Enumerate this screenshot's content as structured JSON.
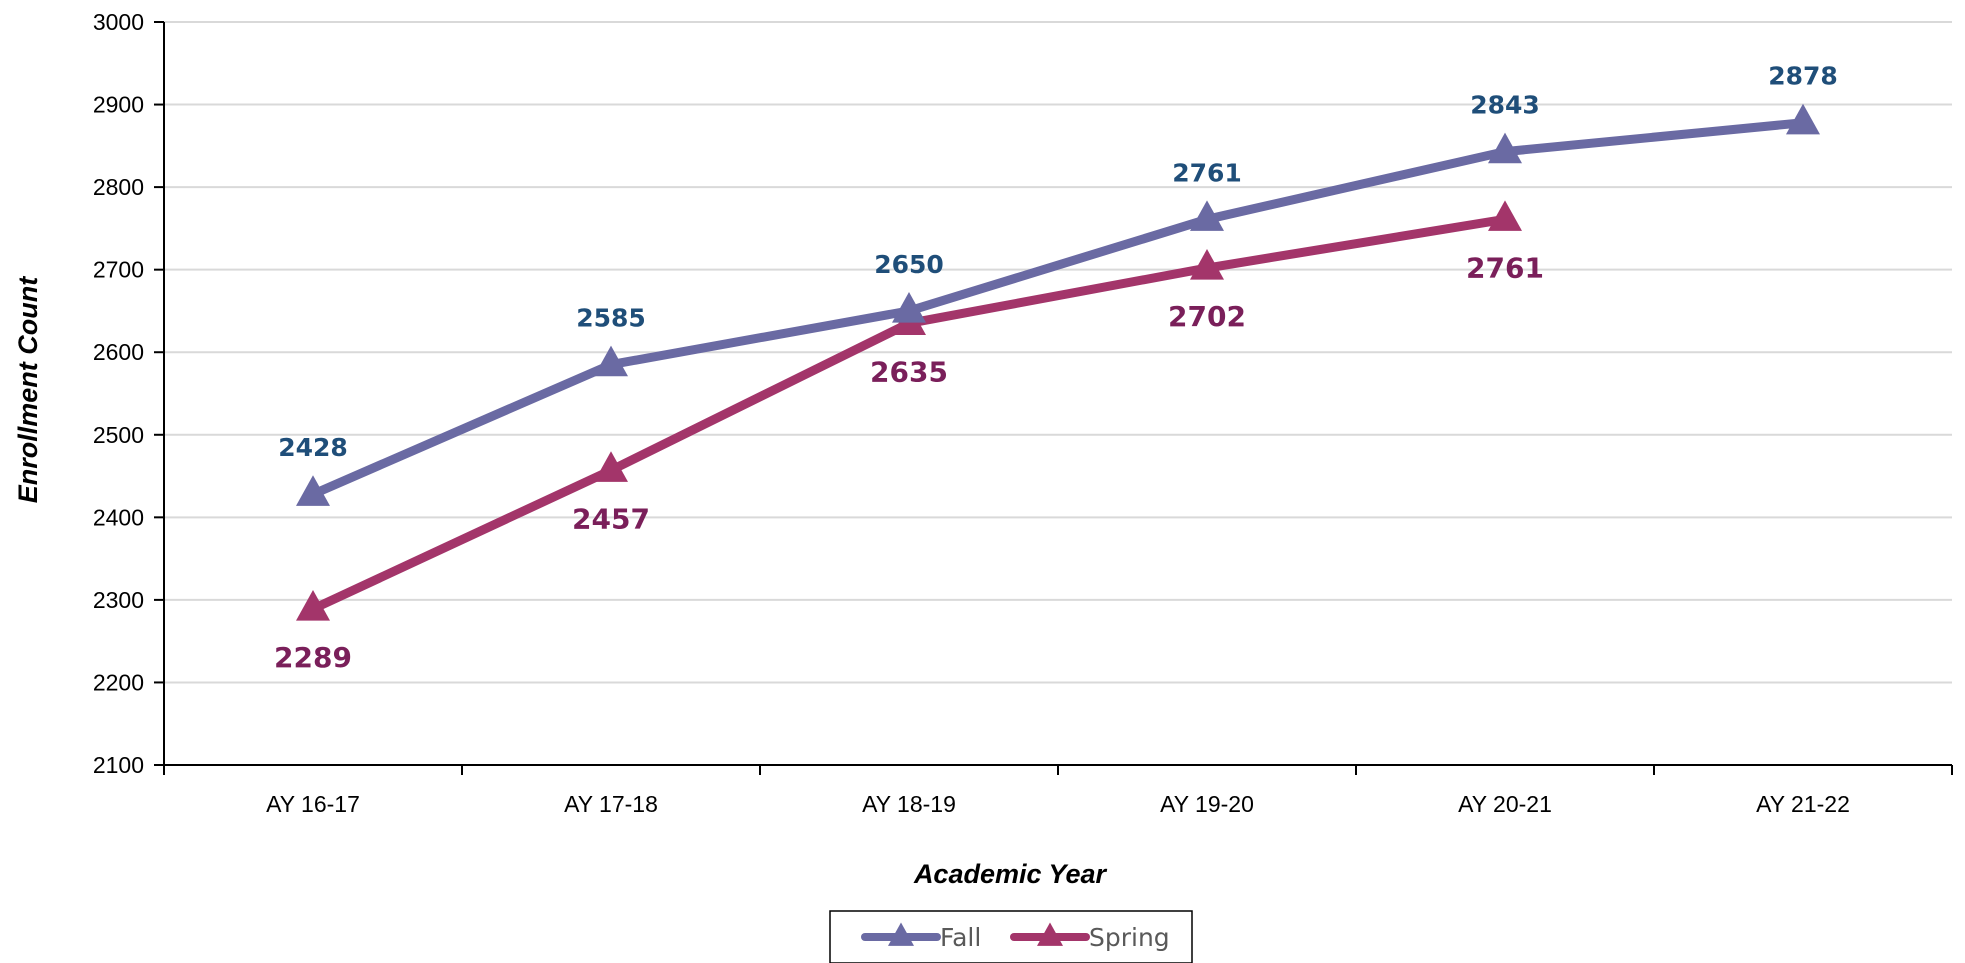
{
  "chart_data": {
    "type": "line",
    "title": "",
    "xlabel": "Academic Year",
    "ylabel": "Enrollment Count",
    "categories": [
      "AY 16-17",
      "AY 17-18",
      "AY 18-19",
      "AY 19-20",
      "AY 20-21",
      "AY 21-22"
    ],
    "ylim": [
      2100,
      3000
    ],
    "yticks": [
      2100,
      2200,
      2300,
      2400,
      2500,
      2600,
      2700,
      2800,
      2900,
      3000
    ],
    "grid": true,
    "legend": "bottom-center",
    "series": [
      {
        "name": "Fall",
        "values": [
          2428,
          2585,
          2650,
          2761,
          2843,
          2878
        ],
        "color": "#6A6AA3",
        "label_color": "#1F4E79",
        "label_position": "above",
        "marker": "triangle"
      },
      {
        "name": "Spring",
        "values": [
          2289,
          2457,
          2635,
          2702,
          2761,
          null
        ],
        "color": "#A3356A",
        "label_color": "#7A1F5A",
        "label_position": "below",
        "marker": "triangle"
      }
    ]
  }
}
